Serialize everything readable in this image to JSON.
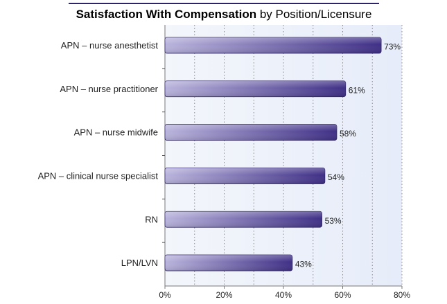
{
  "chart_data": {
    "type": "bar",
    "orientation": "horizontal",
    "title_bold": "Satisfaction With Compensation",
    "title_rest": " by Position/Licensure",
    "categories": [
      "APN – nurse anesthetist",
      "APN – nurse practitioner",
      "APN – nurse midwife",
      "APN – clinical nurse specialist",
      "RN",
      "LPN/LVN"
    ],
    "values": [
      73,
      61,
      58,
      54,
      53,
      43
    ],
    "value_labels": [
      "73%",
      "61%",
      "58%",
      "54%",
      "53%",
      "43%"
    ],
    "xlim": [
      0,
      80
    ],
    "x_ticks": [
      0,
      20,
      40,
      60,
      80
    ],
    "x_tick_labels": [
      "0%",
      "20%",
      "40%",
      "60%",
      "80%"
    ],
    "grid": "vertical dotted",
    "xlabel": "",
    "ylabel": ""
  },
  "colors": {
    "bar_dark": "#3f2f86",
    "bar_light": "#b9b4dc",
    "plot_bg_left": "#f3f6fb",
    "plot_bg_right": "#e6ecf9",
    "title_line": "#2a2566",
    "grid": "#8a8a8a"
  }
}
